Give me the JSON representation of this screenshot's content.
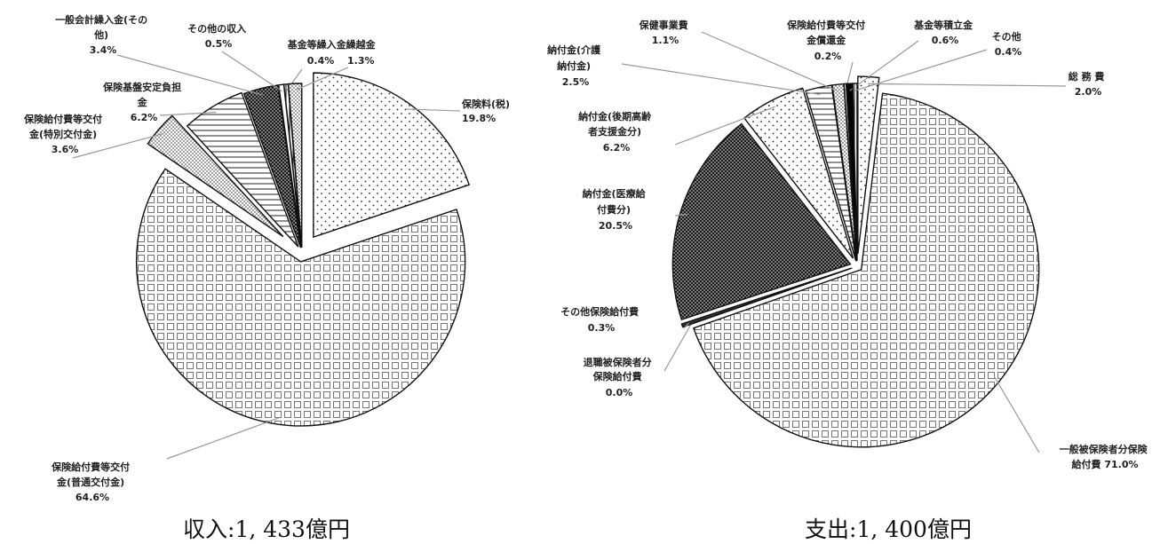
{
  "chart_data": [
    {
      "type": "pie",
      "caption": "収入:1, 433億円",
      "slices": [
        {
          "lines": [
            "保険料(税)",
            "19.8%"
          ],
          "value": 19.8,
          "pattern": "dots"
        },
        {
          "lines": [
            "保険給付費等交付",
            "金(普通交付金)",
            "64.6%"
          ],
          "value": 64.6,
          "pattern": "grid"
        },
        {
          "lines": [
            "保険給付費等交付",
            "金(特別交付金)",
            "3.6%"
          ],
          "value": 3.6,
          "pattern": "dense-dots"
        },
        {
          "lines": [
            "保険基盤安定負担",
            "金",
            "6.2%"
          ],
          "value": 6.2,
          "pattern": "hstripes"
        },
        {
          "lines": [
            "一般会計繰入金(その",
            "他)",
            "3.4%"
          ],
          "value": 3.4,
          "pattern": "checker"
        },
        {
          "lines": [
            "その他の収入",
            "0.5%"
          ],
          "value": 0.5,
          "pattern": "plain"
        },
        {
          "lines": [
            "基金等繰入金繰越金",
            "0.4%"
          ],
          "value": 0.4,
          "pattern": "vstripes"
        },
        {
          "lines": [
            "1.3%"
          ],
          "value": 1.3,
          "pattern": "dense-dots"
        }
      ]
    },
    {
      "type": "pie",
      "caption": "支出:1, 400億円",
      "slices": [
        {
          "lines": [
            "総 務 費",
            "2.0%"
          ],
          "value": 2.0,
          "pattern": "dots"
        },
        {
          "lines": [
            "一般被保険者分保険",
            "給付費 71.0%"
          ],
          "value": 71.0,
          "pattern": "grid"
        },
        {
          "lines": [
            "退職被保険者分",
            "保険給付費",
            "0.0%"
          ],
          "value": 0.0,
          "pattern": "plain"
        },
        {
          "lines": [
            "その他保険給付費",
            "0.3%"
          ],
          "value": 0.3,
          "pattern": "dark"
        },
        {
          "lines": [
            "納付金(医療給",
            "付費分)",
            "20.5%"
          ],
          "value": 20.5,
          "pattern": "checker"
        },
        {
          "lines": [
            "納付金(後期高齢",
            "者支援金分)",
            "6.2%"
          ],
          "value": 6.2,
          "pattern": "dots"
        },
        {
          "lines": [
            "納付金(介護",
            "納付金)",
            "2.5%"
          ],
          "value": 2.5,
          "pattern": "hstripes"
        },
        {
          "lines": [
            "保健事業費",
            "1.1%"
          ],
          "value": 1.1,
          "pattern": "dense-dots"
        },
        {
          "lines": [
            "保険給付費等交付",
            "金償還金",
            "0.2%"
          ],
          "value": 0.2,
          "pattern": "plain"
        },
        {
          "lines": [
            "基金等積立金",
            "0.6%"
          ],
          "value": 0.6,
          "pattern": "black"
        },
        {
          "lines": [
            "その他",
            "0.4%"
          ],
          "value": 0.4,
          "pattern": "vstripes"
        }
      ]
    }
  ]
}
